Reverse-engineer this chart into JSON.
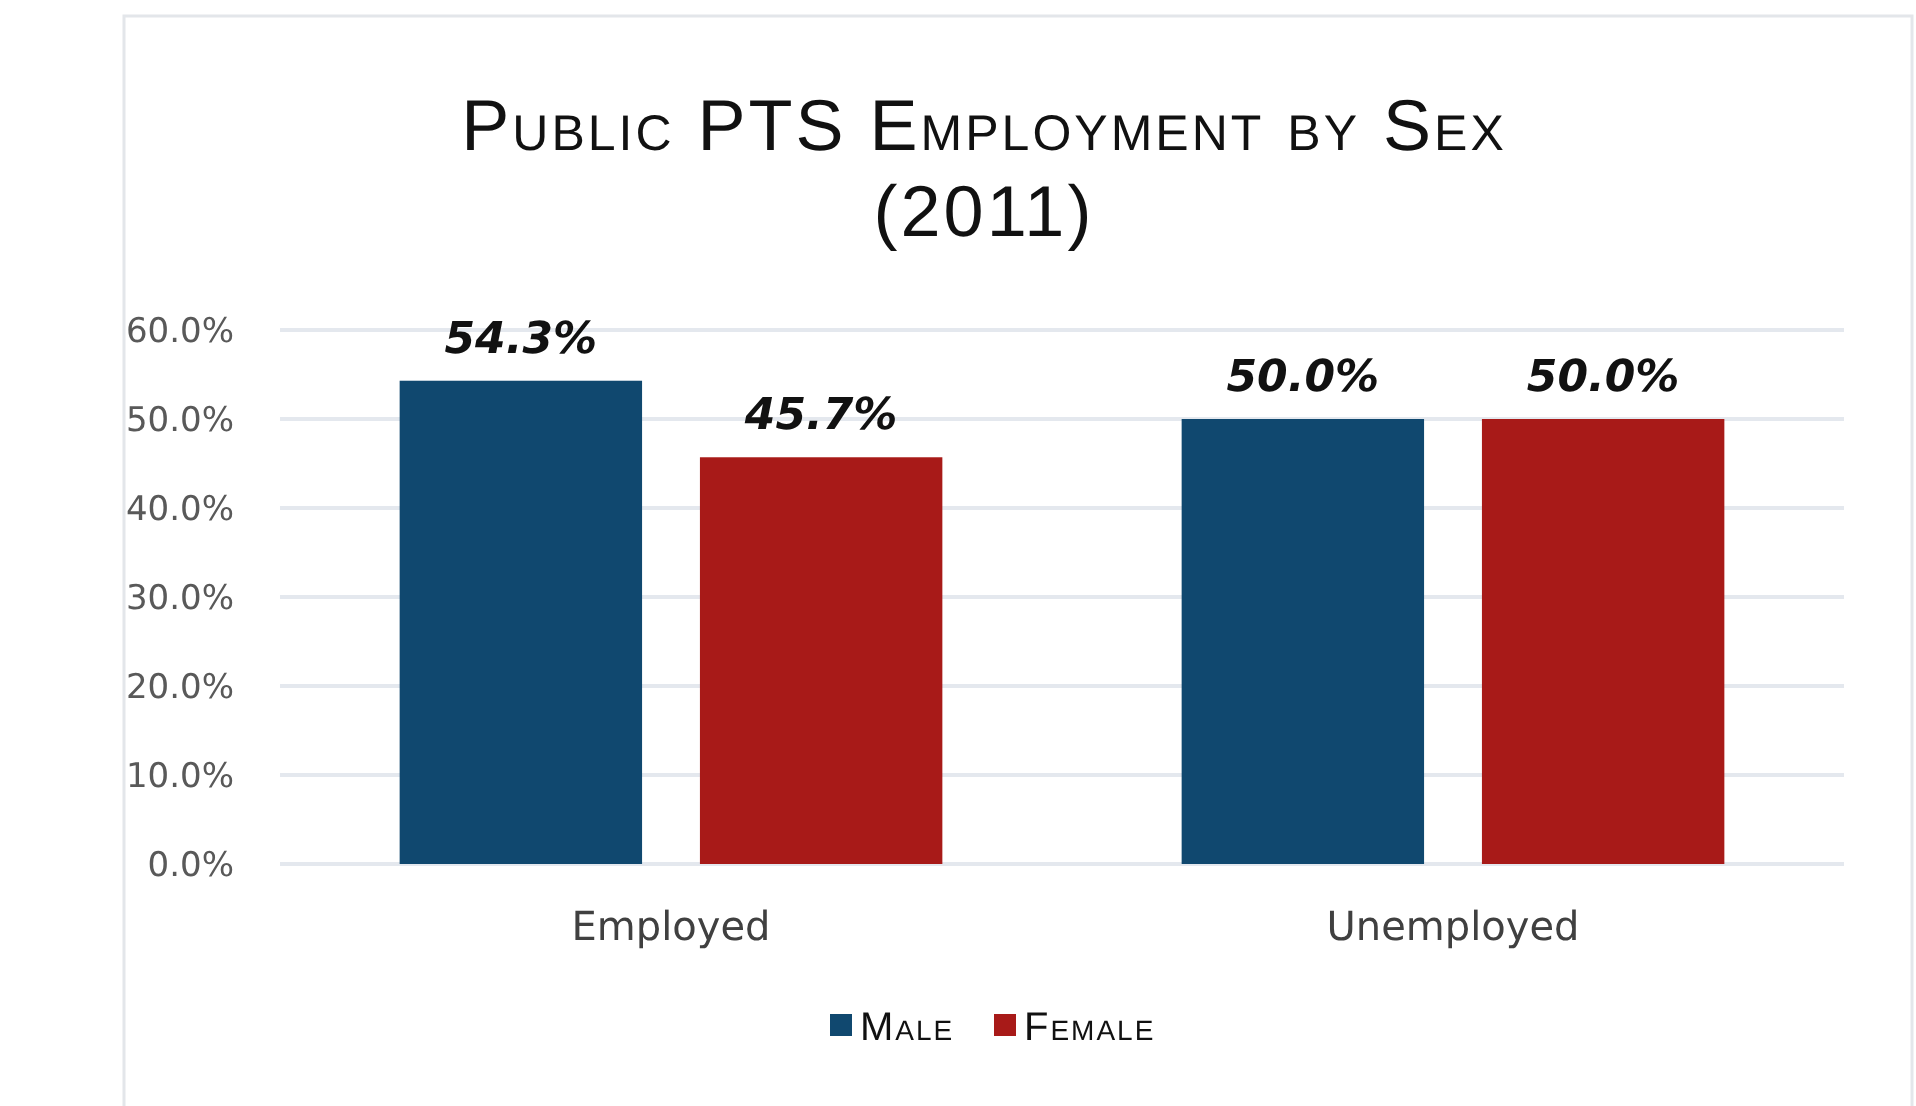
{
  "chart_data": {
    "type": "bar",
    "title": "Public PTS Employment by Sex\n(2011)",
    "categories": [
      "Employed",
      "Unemployed"
    ],
    "series": [
      {
        "name": "Male",
        "color": "#10486f",
        "values": [
          54.3,
          50.0
        ],
        "value_labels": [
          "54.3%",
          "50.0%"
        ]
      },
      {
        "name": "Female",
        "color": "#a81a18",
        "values": [
          45.7,
          50.0
        ],
        "value_labels": [
          "45.7%",
          "50.0%"
        ]
      }
    ],
    "ylim": [
      0,
      60
    ],
    "yticks": [
      {
        "value": 0,
        "label": "0.0%"
      },
      {
        "value": 10,
        "label": "10.0%"
      },
      {
        "value": 20,
        "label": "20.0%"
      },
      {
        "value": 30,
        "label": "30.0%"
      },
      {
        "value": 40,
        "label": "40.0%"
      },
      {
        "value": 50,
        "label": "50.0%"
      },
      {
        "value": 60,
        "label": "60.0%"
      }
    ],
    "grid": "y",
    "legend": "bottom"
  }
}
